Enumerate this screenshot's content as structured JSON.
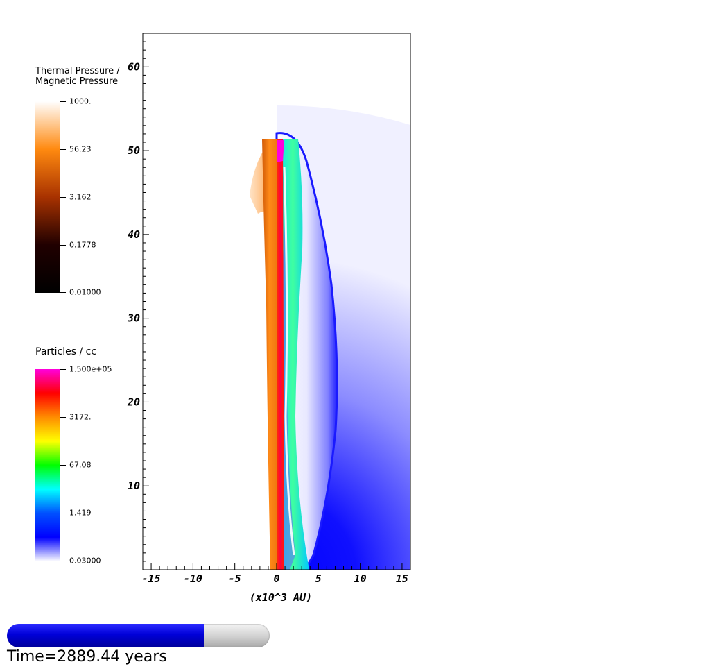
{
  "legends": [
    {
      "title_lines": [
        "Thermal Pressure /",
        "Magnetic Pressure"
      ],
      "ticks": [
        "1000.",
        "56.23",
        "3.162",
        "0.1778",
        "0.01000"
      ],
      "colors": [
        "#ffffff",
        "#ff8a10",
        "#a83200",
        "#200000",
        "#000000"
      ]
    },
    {
      "title_lines": [
        "Particles / cc"
      ],
      "ticks": [
        "1.500e+05",
        "3172.",
        "67.08",
        "1.419",
        "0.03000"
      ],
      "colors": [
        "#ff00dc",
        "#ff0000",
        "#ff8c00",
        "#ffff00",
        "#00ff00",
        "#00ffff",
        "#0050ff",
        "#0000ff",
        "#ffffff"
      ]
    }
  ],
  "chart_data": {
    "type": "heatmap",
    "title": "",
    "xlabel": "(x10^3 AU)",
    "ylabel": "",
    "xlim": [
      -16,
      16
    ],
    "ylim": [
      0,
      64
    ],
    "x_ticks": [
      -15,
      -10,
      -5,
      0,
      5,
      10,
      15
    ],
    "x_tick_labels": [
      "-15",
      "-10",
      "-5",
      "0",
      "5",
      "10",
      "15"
    ],
    "y_ticks": [
      10,
      20,
      30,
      40,
      50,
      60
    ],
    "y_tick_labels": [
      "10",
      "20",
      "30",
      "40",
      "50",
      "60"
    ],
    "grid": false,
    "left_half_field": "Thermal Pressure / Magnetic Pressure",
    "right_half_field": "Particles / cc"
  },
  "progress": {
    "fraction": 0.75
  },
  "time_label": "Time=2889.44 years"
}
